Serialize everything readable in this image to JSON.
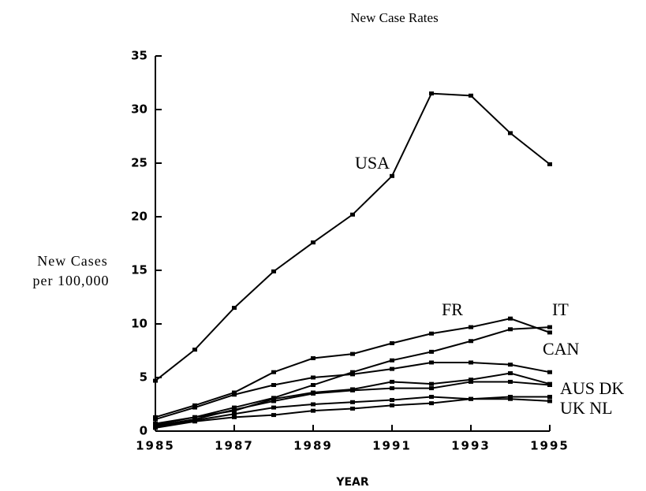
{
  "chart_data": {
    "type": "line",
    "title": "New Case Rates",
    "xlabel": "YEAR",
    "ylabel": [
      "New Cases",
      "per 100,000"
    ],
    "x": [
      1985,
      1986,
      1987,
      1988,
      1989,
      1990,
      1991,
      1992,
      1993,
      1994,
      1995
    ],
    "xlim": [
      1985,
      1995
    ],
    "xticks": [
      1985,
      1987,
      1989,
      1991,
      1993,
      1995
    ],
    "ylim": [
      0,
      35
    ],
    "yticks": [
      0,
      5,
      10,
      15,
      20,
      25,
      30,
      35
    ],
    "color": "#000000",
    "series": [
      {
        "values": [
          4.7,
          7.6,
          11.5,
          14.9,
          17.6,
          20.2,
          23.8,
          31.5,
          31.3,
          27.8,
          24.9
        ]
      },
      {
        "values": [
          1.3,
          2.4,
          3.6,
          5.5,
          6.8,
          7.2,
          8.2,
          9.1,
          9.7,
          10.5,
          9.2
        ]
      },
      {
        "values": [
          0.7,
          1.3,
          2.2,
          3.1,
          4.3,
          5.5,
          6.6,
          7.4,
          8.4,
          9.5,
          9.7
        ]
      },
      {
        "values": [
          1.1,
          2.2,
          3.4,
          4.3,
          5.0,
          5.3,
          5.8,
          6.4,
          6.4,
          6.2,
          5.5
        ]
      },
      {
        "values": [
          0.6,
          1.3,
          1.9,
          3.0,
          3.6,
          3.9,
          4.6,
          4.4,
          4.8,
          5.4,
          4.4
        ]
      },
      {
        "values": [
          0.5,
          1.1,
          2.0,
          2.8,
          3.5,
          3.8,
          4.0,
          4.0,
          4.6,
          4.6,
          4.3
        ]
      },
      {
        "values": [
          0.4,
          1.0,
          1.6,
          2.2,
          2.5,
          2.7,
          2.9,
          3.2,
          3.0,
          3.2,
          3.2
        ]
      },
      {
        "values": [
          0.3,
          0.9,
          1.3,
          1.5,
          1.9,
          2.1,
          2.4,
          2.6,
          3.0,
          3.0,
          2.8
        ]
      }
    ],
    "annotations": [
      "USA",
      "FR",
      "IT",
      "CAN",
      "AUS DK",
      "UK NL"
    ]
  }
}
